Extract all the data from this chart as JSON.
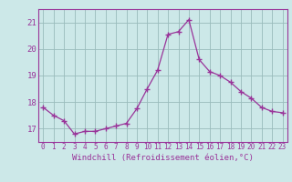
{
  "x": [
    0,
    1,
    2,
    3,
    4,
    5,
    6,
    7,
    8,
    9,
    10,
    11,
    12,
    13,
    14,
    15,
    16,
    17,
    18,
    19,
    20,
    21,
    22,
    23
  ],
  "y": [
    17.8,
    17.5,
    17.3,
    16.8,
    16.9,
    16.9,
    17.0,
    17.1,
    17.2,
    17.75,
    18.5,
    19.2,
    20.55,
    20.65,
    21.1,
    19.6,
    19.15,
    19.0,
    18.75,
    18.4,
    18.15,
    17.8,
    17.65,
    17.6
  ],
  "line_color": "#993399",
  "marker_color": "#993399",
  "bg_color": "#cce8e8",
  "grid_color": "#99bbbb",
  "axis_color": "#993399",
  "tick_color": "#993399",
  "xlabel": "Windchill (Refroidissement éolien,°C)",
  "ylim": [
    16.5,
    21.5
  ],
  "yticks": [
    17,
    18,
    19,
    20,
    21
  ],
  "xticks": [
    0,
    1,
    2,
    3,
    4,
    5,
    6,
    7,
    8,
    9,
    10,
    11,
    12,
    13,
    14,
    15,
    16,
    17,
    18,
    19,
    20,
    21,
    22,
    23
  ],
  "font_family": "monospace",
  "xlabel_fontsize": 6.5,
  "xtick_fontsize": 5.5,
  "ytick_fontsize": 6.5
}
